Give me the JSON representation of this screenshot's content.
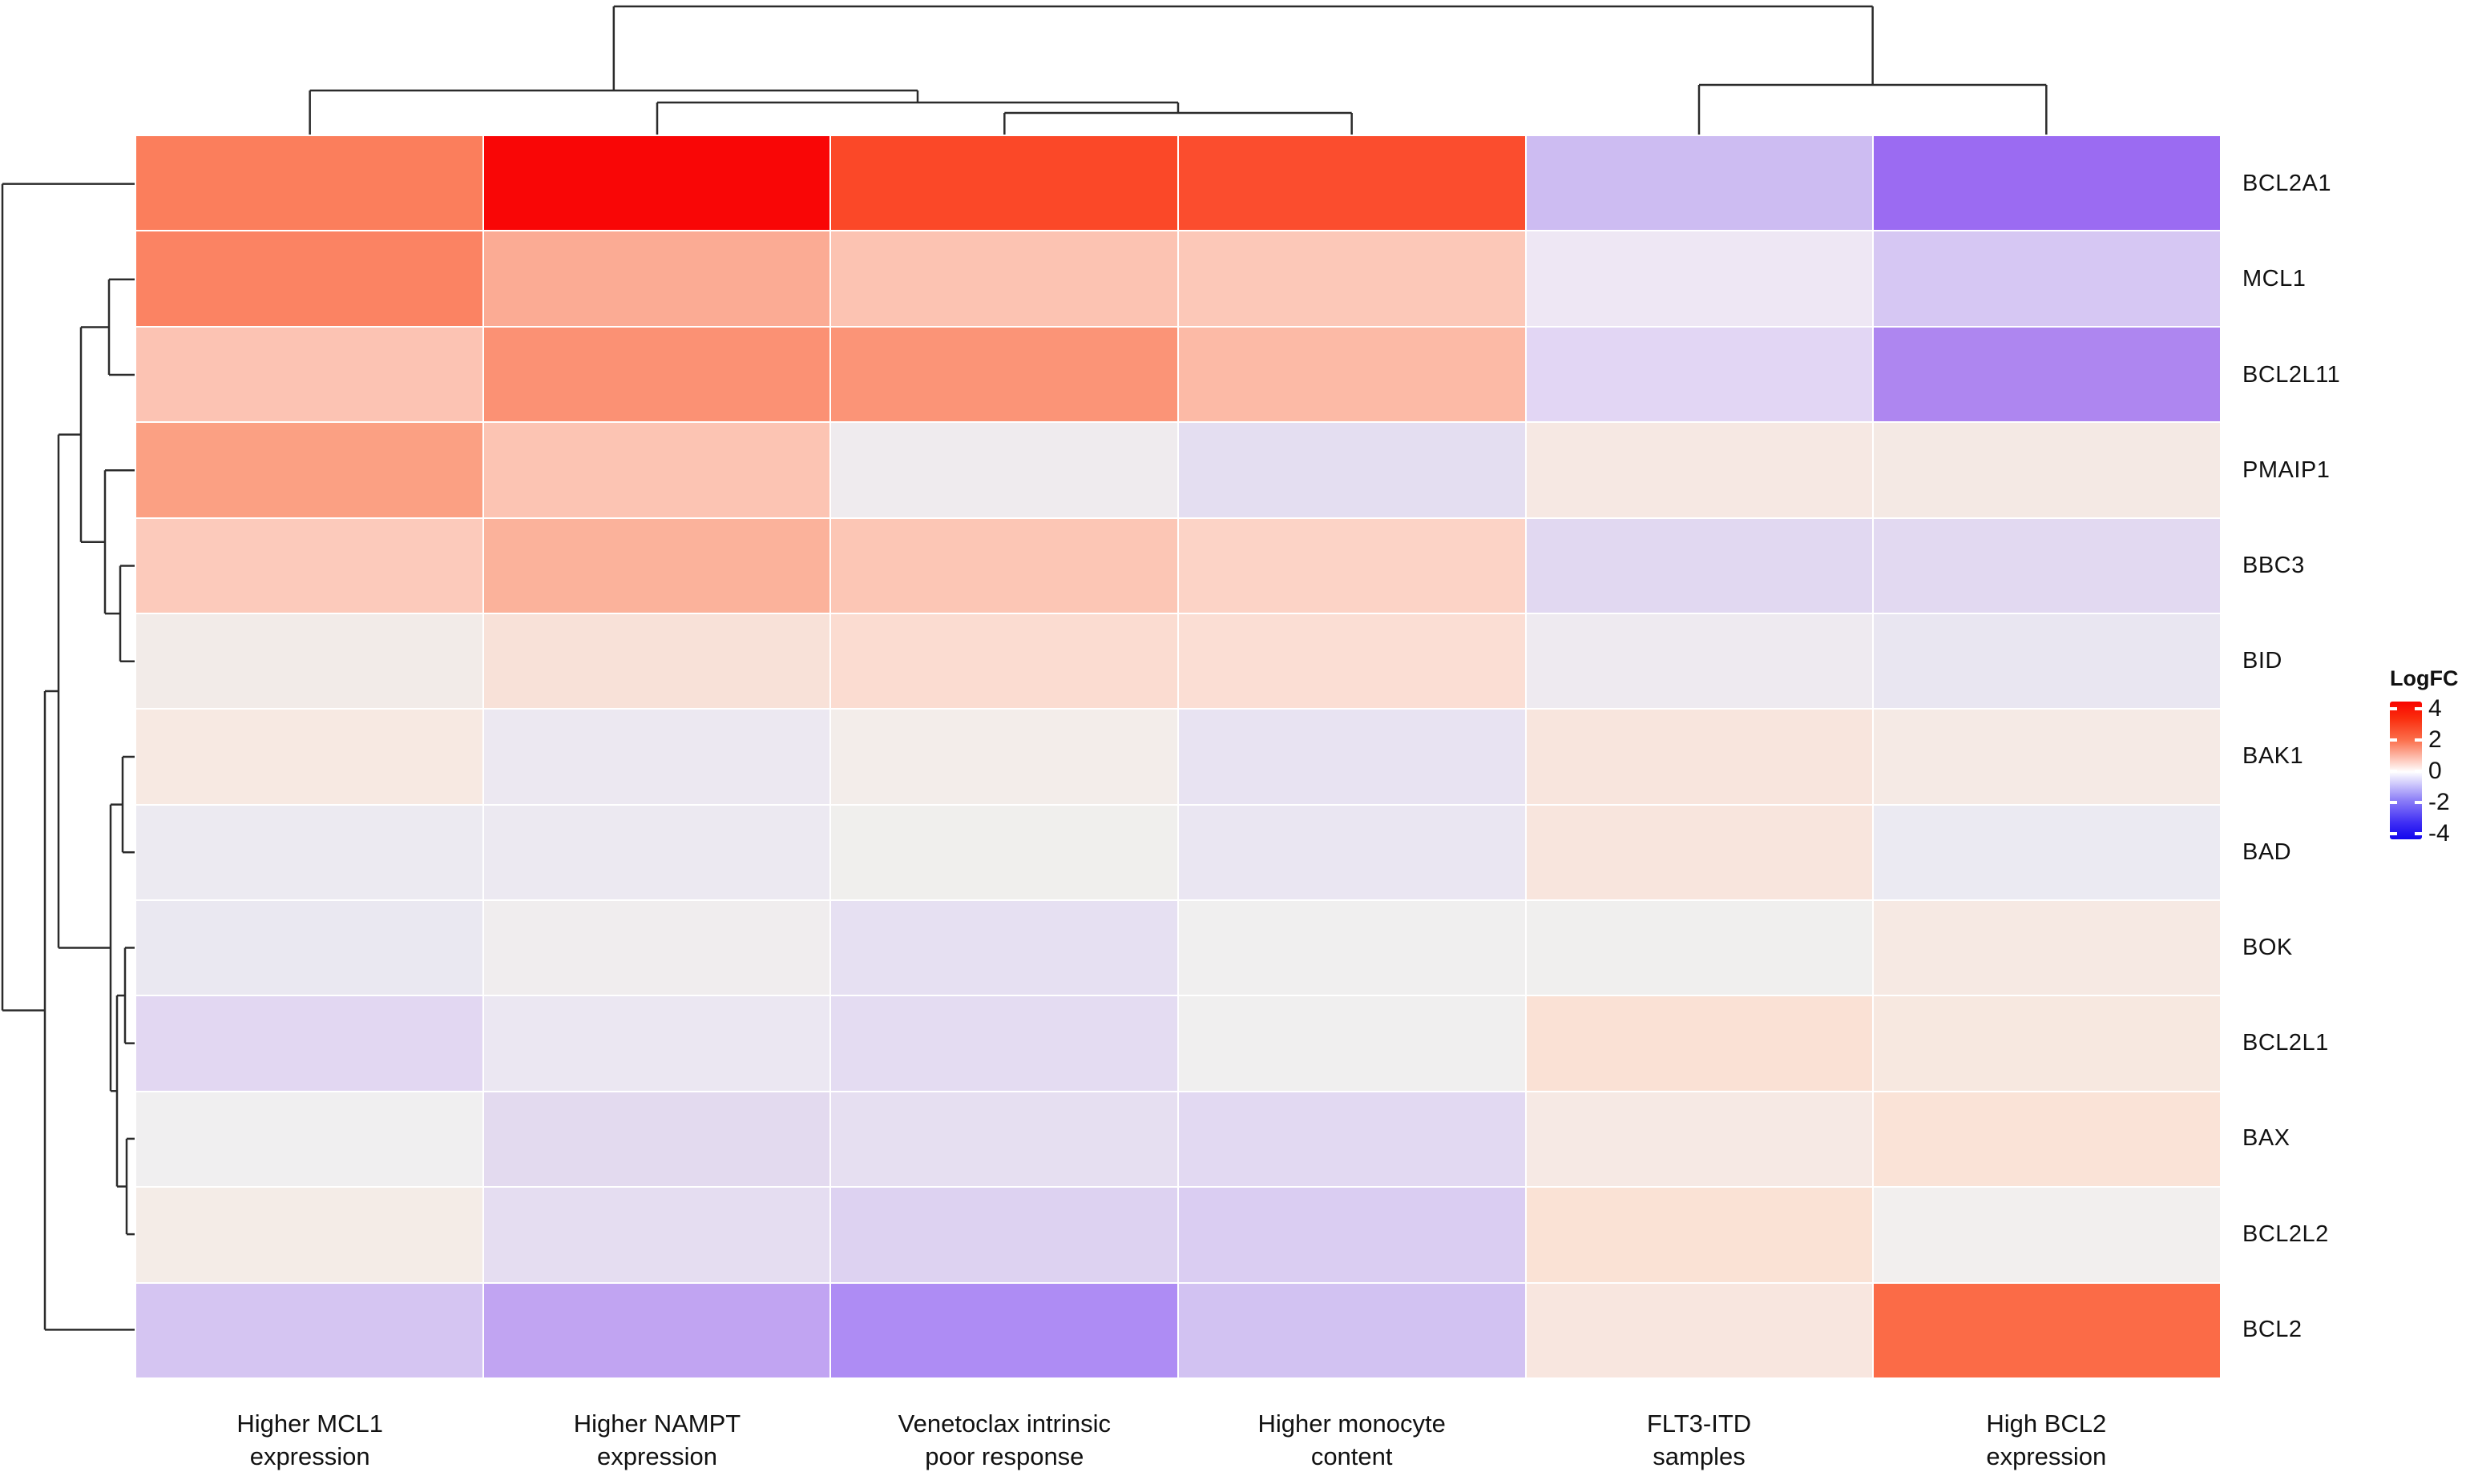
{
  "figure": {
    "kind": "clustered heatmap of LogFC values"
  },
  "legend": {
    "title": "LogFC",
    "ticks": [
      {
        "label": "4",
        "value": 4
      },
      {
        "label": "2",
        "value": 2
      },
      {
        "label": "0",
        "value": 0
      },
      {
        "label": "-2",
        "value": -2
      },
      {
        "label": "-4",
        "value": -4
      }
    ],
    "gradient_stops": [
      "#F90400",
      "#FA2D0E",
      "#FB6F4C",
      "#FFFFFF",
      "#8A7CF7",
      "#3F2EF4",
      "#1206EE"
    ],
    "max_color": "#F90400",
    "mid_color": "#FFFFFF",
    "min_color": "#1206EE"
  },
  "chart_data": {
    "type": "heatmap",
    "title": "",
    "value_label": "LogFC",
    "value_range": [
      -4,
      4
    ],
    "rows": [
      "BCL2A1",
      "MCL1",
      "BCL2L11",
      "PMAIP1",
      "BBC3",
      "BID",
      "BAK1",
      "BAD",
      "BOK",
      "BCL2L1",
      "BAX",
      "BCL2L2",
      "BCL2"
    ],
    "columns": [
      "Higher MCL1\nexpression",
      "Higher NAMPT\nexpression",
      "Venetoclax intrinsic\npoor response",
      "Higher monocyte\ncontent",
      "FLT3-ITD\nsamples",
      "High BCL2\nexpression"
    ],
    "values": [
      [
        1.9,
        4.0,
        3.0,
        2.9,
        -0.9,
        -2.1
      ],
      [
        1.8,
        1.2,
        0.9,
        0.8,
        -0.3,
        -0.8
      ],
      [
        0.9,
        1.6,
        1.5,
        1.0,
        -0.6,
        -1.8
      ],
      [
        1.4,
        0.9,
        0.1,
        -0.4,
        0.2,
        0.2
      ],
      [
        0.8,
        1.1,
        0.8,
        0.6,
        -0.5,
        -0.5
      ],
      [
        0.1,
        0.4,
        0.5,
        0.4,
        0.0,
        -0.1
      ],
      [
        0.2,
        -0.1,
        0.1,
        -0.3,
        0.4,
        0.2
      ],
      [
        -0.1,
        -0.1,
        0.0,
        -0.3,
        0.4,
        -0.1
      ],
      [
        -0.2,
        0.0,
        -0.3,
        0.0,
        0.0,
        0.2
      ],
      [
        -0.6,
        -0.2,
        -0.4,
        0.0,
        0.4,
        0.3
      ],
      [
        0.0,
        -0.4,
        -0.4,
        -0.5,
        0.2,
        0.4
      ],
      [
        0.1,
        -0.4,
        -0.6,
        -0.7,
        0.4,
        0.0
      ],
      [
        -0.9,
        -1.5,
        -2.0,
        -1.0,
        0.2,
        2.6
      ]
    ],
    "cell_colors": [
      [
        "#FB7E5C",
        "#F90606",
        "#FB4828",
        "#FB4D2E",
        "#CDBCF2",
        "#9B6BF2"
      ],
      [
        "#FB8363",
        "#FBAB94",
        "#FCC3B2",
        "#FCC8B8",
        "#EEE7F4",
        "#D6C7F3"
      ],
      [
        "#FCC3B3",
        "#FB9174",
        "#FB9477",
        "#FCBAA6",
        "#E2D6F4",
        "#AE86F0"
      ],
      [
        "#FBA083",
        "#FCC4B3",
        "#EFEBEE",
        "#E4DEF1",
        "#F6E8E3",
        "#F4E9E4"
      ],
      [
        "#FCCABB",
        "#FBB29B",
        "#FCC6B5",
        "#FCD3C6",
        "#E1D8F1",
        "#E2D9F1"
      ],
      [
        "#F2EBE8",
        "#F8E1D8",
        "#FBDCD1",
        "#FBDED4",
        "#EEEAF0",
        "#E9E6F1"
      ],
      [
        "#F7E9E2",
        "#ECE8F1",
        "#F3EDEA",
        "#E8E3F2",
        "#F8E5DD",
        "#F5EAE5"
      ],
      [
        "#ECEAF1",
        "#ECE9F1",
        "#F0EFED",
        "#EAE6F2",
        "#F8E5DD",
        "#EBEAF2"
      ],
      [
        "#EAE8F1",
        "#F0EDEE",
        "#E6E0F2",
        "#F0EFEF",
        "#F0EFEE",
        "#F6E9E3"
      ],
      [
        "#E2D7F2",
        "#EBE7F2",
        "#E4DCF2",
        "#F0EFEF",
        "#FAE1D5",
        "#F7E8E0"
      ],
      [
        "#F0EFF0",
        "#E3DAEF",
        "#E6DFF1",
        "#E2D9F2",
        "#F6E9E4",
        "#FAE3D7"
      ],
      [
        "#F4ECE7",
        "#E5DDF1",
        "#DDD2F1",
        "#DACDF2",
        "#FAE2D5",
        "#F2EFEE"
      ],
      [
        "#D5C5F2",
        "#C1A4F2",
        "#AE8CF4",
        "#D2C2F2",
        "#F8E6DF",
        "#FB6B47"
      ]
    ],
    "column_dendrogram": {
      "orientation": "top",
      "merges": [
        {
          "a": "L2",
          "b": "L3",
          "h": 27
        },
        {
          "a": "L1",
          "b": "M0",
          "h": 40
        },
        {
          "a": "L0",
          "b": "M1",
          "h": 55
        },
        {
          "a": "L4",
          "b": "L5",
          "h": 62
        },
        {
          "a": "M2",
          "b": "M3",
          "h": 160
        }
      ]
    },
    "row_dendrogram": {
      "orientation": "left",
      "merges": [
        {
          "a": "L1",
          "b": "L2",
          "h": 32
        },
        {
          "a": "L4",
          "b": "L5",
          "h": 18
        },
        {
          "a": "L3",
          "b": "M1",
          "h": 37
        },
        {
          "a": "M0",
          "b": "M2",
          "h": 67
        },
        {
          "a": "L6",
          "b": "L7",
          "h": 15
        },
        {
          "a": "L8",
          "b": "L9",
          "h": 12
        },
        {
          "a": "L10",
          "b": "L11",
          "h": 10
        },
        {
          "a": "M5",
          "b": "M6",
          "h": 22
        },
        {
          "a": "M4",
          "b": "M7",
          "h": 30
        },
        {
          "a": "M3",
          "b": "M8",
          "h": 95
        },
        {
          "a": "M9",
          "b": "L12",
          "h": 112
        },
        {
          "a": "L0",
          "b": "M10",
          "h": 165
        }
      ]
    }
  }
}
